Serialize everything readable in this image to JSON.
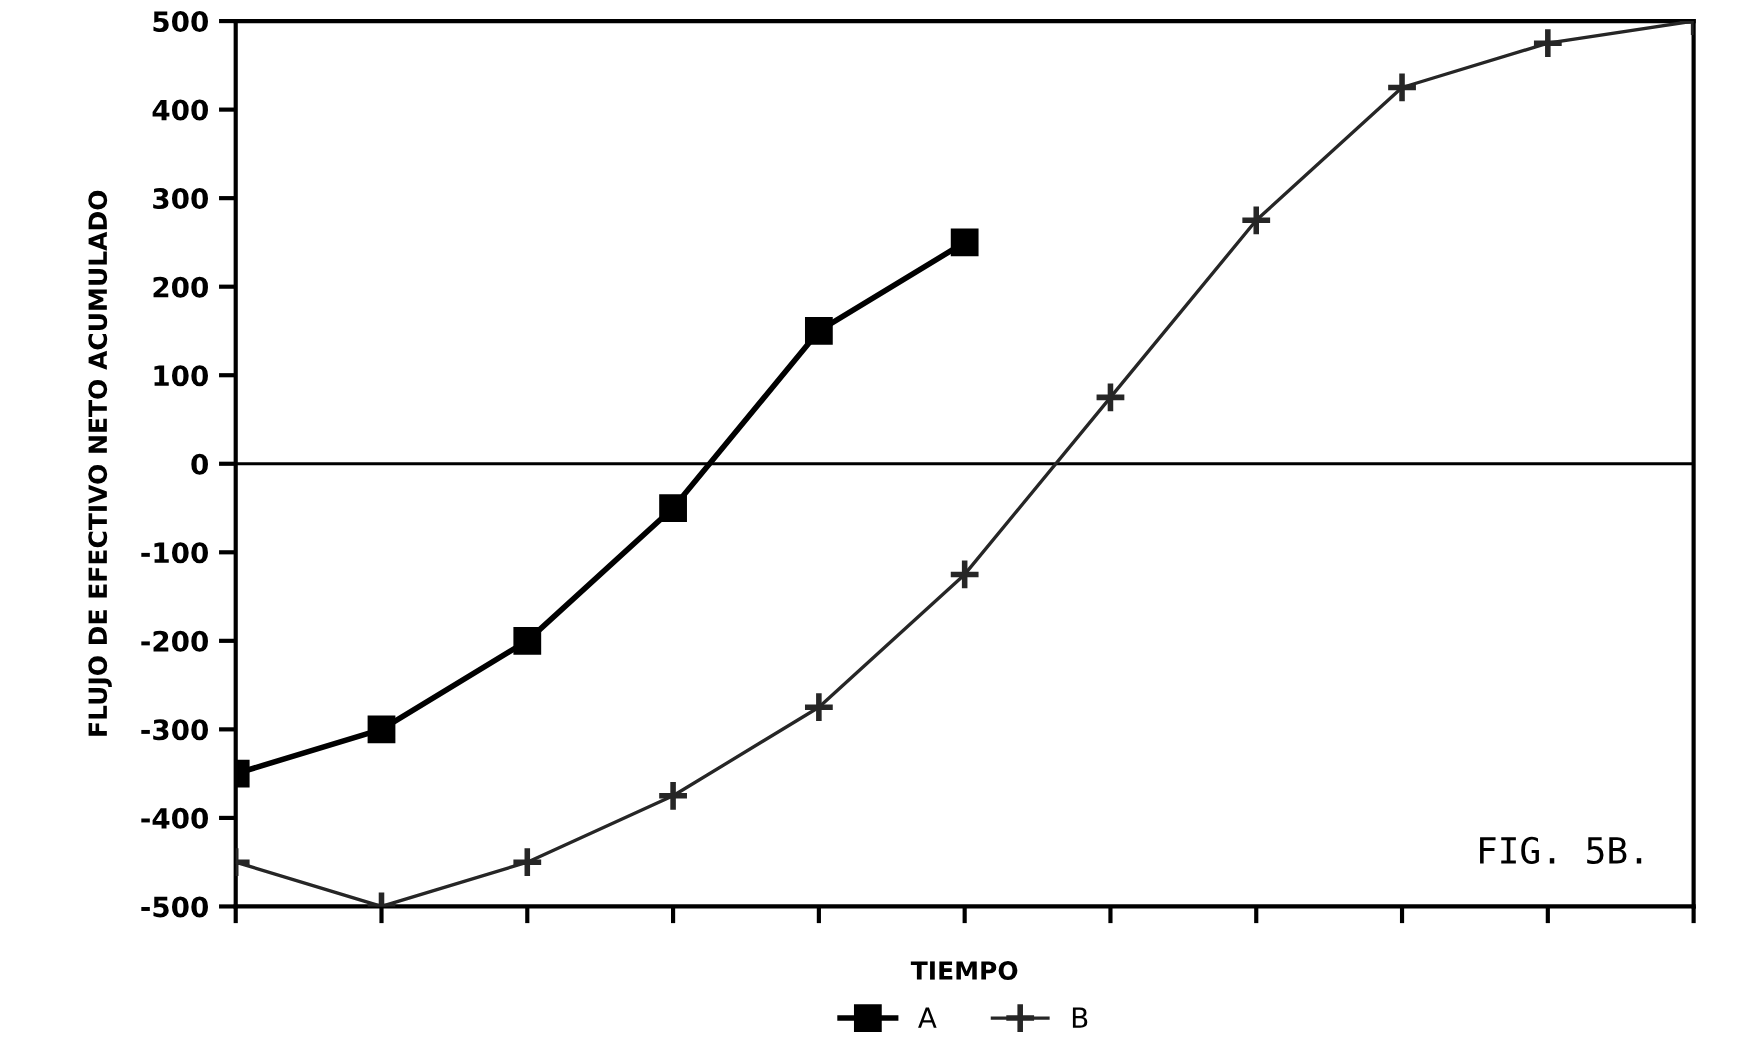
{
  "chart_data": {
    "type": "line",
    "xlabel": "TIEMPO",
    "ylabel": "FLUJO DE EFECTIVO NETO ACUMULADO",
    "categories": [
      null,
      null,
      null,
      null,
      null,
      null,
      null,
      null,
      null,
      null,
      null
    ],
    "series": [
      {
        "name": "A",
        "color": "#000000",
        "marker": "square",
        "line_style": "solid",
        "values": [
          -350,
          -300,
          -200,
          -50,
          150,
          250,
          null,
          null,
          null,
          null,
          null
        ]
      },
      {
        "name": "B",
        "color": "#262626",
        "marker": "cross",
        "line_style": "solid",
        "values": [
          -450,
          -500,
          -450,
          -375,
          -275,
          -125,
          75,
          275,
          425,
          475,
          500
        ]
      }
    ],
    "ylim": [
      -500,
      500
    ],
    "yticks": [
      -500,
      -400,
      -300,
      -200,
      -100,
      0,
      100,
      200,
      300,
      400,
      500
    ],
    "ref_lines": [
      {
        "axis": "y",
        "value": 0,
        "color": "#000000"
      }
    ],
    "annotations": [
      "FIG. 5B."
    ],
    "grid": false,
    "legend": "bottom"
  }
}
